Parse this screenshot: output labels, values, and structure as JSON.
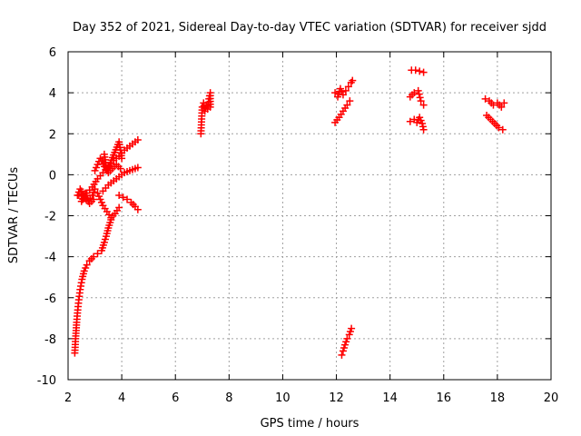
{
  "chart_data": {
    "type": "scatter",
    "title": "Day 352 of 2021, Sidereal Day-to-day VTEC variation (SDTVAR) for receiver sjdd",
    "xlabel": "GPS time / hours",
    "ylabel": "SDTVAR / TECUs",
    "xlim": [
      2,
      20
    ],
    "ylim": [
      -10,
      6
    ],
    "x_ticks": [
      "2",
      "4",
      "6",
      "8",
      "10",
      "12",
      "14",
      "16",
      "18",
      "20"
    ],
    "y_ticks": [
      "-10",
      "-8",
      "-6",
      "-4",
      "-2",
      "0",
      "2",
      "4",
      "6"
    ],
    "grid": true,
    "marker": "+",
    "marker_color": "#ff0000",
    "series": [
      {
        "name": "early-descending-tail",
        "points": [
          [
            2.25,
            -8.7
          ],
          [
            2.28,
            -8.0
          ],
          [
            2.32,
            -7.2
          ],
          [
            2.36,
            -6.6
          ],
          [
            2.4,
            -6.1
          ],
          [
            2.45,
            -5.6
          ],
          [
            2.52,
            -5.1
          ],
          [
            2.6,
            -4.7
          ],
          [
            2.7,
            -4.4
          ],
          [
            2.8,
            -4.2
          ],
          [
            2.95,
            -4.0
          ],
          [
            3.1,
            -3.85
          ],
          [
            3.25,
            -3.7
          ],
          [
            3.35,
            -3.3
          ],
          [
            3.42,
            -3.0
          ],
          [
            3.5,
            -2.6
          ],
          [
            3.6,
            -2.2
          ]
        ]
      },
      {
        "name": "early-lower-arc",
        "points": [
          [
            2.4,
            -1.0
          ],
          [
            2.5,
            -0.8
          ],
          [
            2.6,
            -1.1
          ],
          [
            2.75,
            -1.3
          ],
          [
            2.9,
            -1.0
          ],
          [
            3.0,
            -0.7
          ],
          [
            3.1,
            -0.9
          ],
          [
            3.2,
            -1.2
          ],
          [
            3.3,
            -1.5
          ],
          [
            3.45,
            -1.8
          ],
          [
            3.6,
            -2.1
          ],
          [
            3.75,
            -1.9
          ],
          [
            3.9,
            -1.6
          ]
        ]
      },
      {
        "name": "early-rising-a",
        "points": [
          [
            2.5,
            -1.3
          ],
          [
            2.7,
            -0.9
          ],
          [
            2.9,
            -0.6
          ],
          [
            3.1,
            -0.2
          ],
          [
            3.3,
            0.1
          ],
          [
            3.5,
            0.4
          ],
          [
            3.7,
            0.7
          ],
          [
            3.9,
            0.9
          ],
          [
            4.1,
            1.2
          ],
          [
            4.3,
            1.4
          ],
          [
            4.5,
            1.6
          ],
          [
            4.6,
            1.7
          ]
        ]
      },
      {
        "name": "early-rising-b",
        "points": [
          [
            3.3,
            -0.8
          ],
          [
            3.5,
            -0.5
          ],
          [
            3.7,
            -0.3
          ],
          [
            3.9,
            -0.1
          ],
          [
            4.1,
            0.1
          ],
          [
            4.3,
            0.2
          ],
          [
            4.5,
            0.3
          ],
          [
            4.6,
            0.35
          ]
        ]
      },
      {
        "name": "early-falling",
        "points": [
          [
            3.9,
            -1.0
          ],
          [
            4.05,
            -1.1
          ],
          [
            4.2,
            -1.2
          ],
          [
            4.35,
            -1.35
          ],
          [
            4.5,
            -1.55
          ],
          [
            4.6,
            -1.7
          ]
        ]
      },
      {
        "name": "early-cross",
        "points": [
          [
            3.0,
            0.2
          ],
          [
            3.1,
            0.5
          ],
          [
            3.2,
            0.8
          ],
          [
            3.35,
            0.4
          ],
          [
            3.5,
            0.1
          ],
          [
            3.65,
            0.3
          ],
          [
            3.8,
            0.5
          ],
          [
            3.95,
            0.3
          ]
        ]
      },
      {
        "name": "early-spikes",
        "points": [
          [
            3.35,
            1.0
          ],
          [
            3.4,
            0.6
          ],
          [
            3.45,
            0.2
          ],
          [
            3.9,
            1.6
          ],
          [
            3.95,
            1.2
          ],
          [
            4.0,
            0.8
          ]
        ]
      },
      {
        "name": "early-left-cluster",
        "points": [
          [
            2.35,
            -1.0
          ],
          [
            2.45,
            -0.7
          ],
          [
            2.55,
            -1.2
          ],
          [
            2.65,
            -0.9
          ],
          [
            2.8,
            -1.4
          ],
          [
            2.95,
            -1.2
          ]
        ]
      },
      {
        "name": "seven-hour-cluster",
        "points": [
          [
            6.95,
            2.0
          ],
          [
            7.0,
            3.3
          ],
          [
            7.05,
            3.5
          ],
          [
            7.1,
            3.1
          ],
          [
            7.15,
            3.4
          ],
          [
            7.2,
            3.2
          ],
          [
            7.25,
            3.7
          ],
          [
            7.3,
            4.0
          ],
          [
            7.3,
            3.3
          ]
        ]
      },
      {
        "name": "twelve-upper",
        "points": [
          [
            11.95,
            4.0
          ],
          [
            12.05,
            3.8
          ],
          [
            12.15,
            4.2
          ],
          [
            12.25,
            3.9
          ],
          [
            12.35,
            4.1
          ],
          [
            12.45,
            4.3
          ],
          [
            12.55,
            4.5
          ],
          [
            12.6,
            4.6
          ]
        ]
      },
      {
        "name": "twelve-middle",
        "points": [
          [
            11.95,
            2.55
          ],
          [
            12.1,
            2.8
          ],
          [
            12.25,
            3.1
          ],
          [
            12.4,
            3.4
          ],
          [
            12.5,
            3.6
          ]
        ]
      },
      {
        "name": "twelve-lower",
        "points": [
          [
            12.2,
            -8.8
          ],
          [
            12.25,
            -8.6
          ],
          [
            12.32,
            -8.3
          ],
          [
            12.4,
            -8.0
          ],
          [
            12.48,
            -7.8
          ],
          [
            12.56,
            -7.5
          ]
        ]
      },
      {
        "name": "fifteen-top",
        "points": [
          [
            14.8,
            5.1
          ],
          [
            14.95,
            5.1
          ],
          [
            15.1,
            5.05
          ],
          [
            15.25,
            5.0
          ]
        ]
      },
      {
        "name": "fifteen-middle",
        "points": [
          [
            14.75,
            3.8
          ],
          [
            14.9,
            4.0
          ],
          [
            15.05,
            4.1
          ],
          [
            15.15,
            3.6
          ],
          [
            15.25,
            3.4
          ]
        ]
      },
      {
        "name": "fifteen-lower",
        "points": [
          [
            14.75,
            2.6
          ],
          [
            14.9,
            2.7
          ],
          [
            15.0,
            2.55
          ],
          [
            15.1,
            2.8
          ],
          [
            15.2,
            2.5
          ],
          [
            15.25,
            2.2
          ]
        ]
      },
      {
        "name": "eighteen-upper",
        "points": [
          [
            17.55,
            3.7
          ],
          [
            17.7,
            3.6
          ],
          [
            17.85,
            3.4
          ],
          [
            18.0,
            3.5
          ],
          [
            18.15,
            3.3
          ],
          [
            18.25,
            3.5
          ]
        ]
      },
      {
        "name": "eighteen-lower",
        "points": [
          [
            17.6,
            2.9
          ],
          [
            17.75,
            2.7
          ],
          [
            17.9,
            2.5
          ],
          [
            18.05,
            2.3
          ],
          [
            18.2,
            2.2
          ]
        ]
      }
    ]
  }
}
